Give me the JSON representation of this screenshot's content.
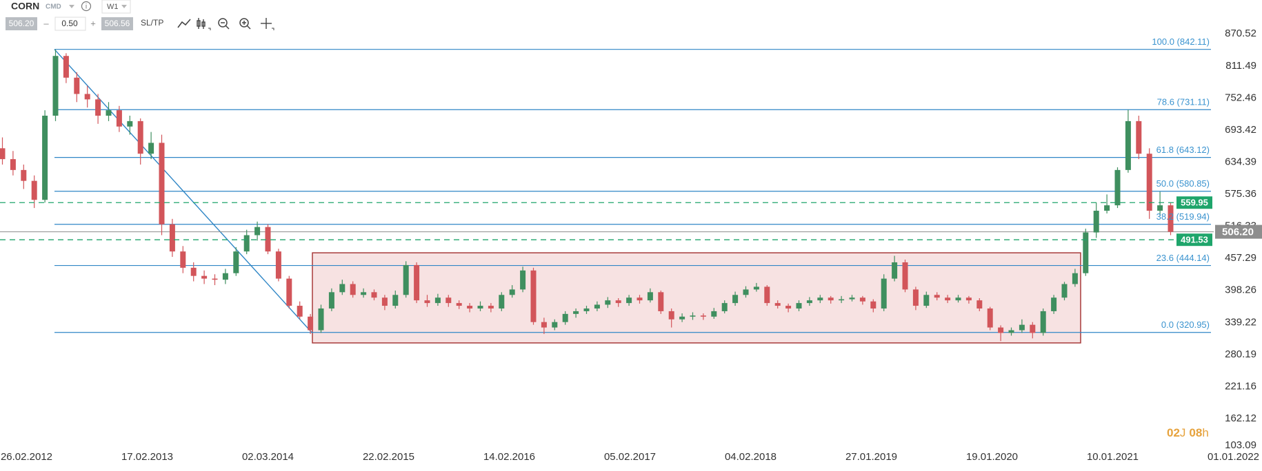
{
  "toolbar": {
    "symbol": "CORN",
    "market": "CMD",
    "timeframe": "W1",
    "bid": "506.20",
    "volume": "0.50",
    "ask": "506.56",
    "sltp": "SL/TP",
    "countdown_days": "02",
    "countdown_days_unit": "J",
    "countdown_hours": "08",
    "countdown_hours_unit": "h"
  },
  "chart_data": {
    "type": "candlestick",
    "x_labels": [
      "26.02.2012",
      "17.02.2013",
      "02.03.2014",
      "22.02.2015",
      "14.02.2016",
      "05.02.2017",
      "04.02.2018",
      "27.01.2019",
      "19.01.2020",
      "10.01.2021",
      "01.01.2022"
    ],
    "candles": [
      [
        660,
        680,
        630,
        640
      ],
      [
        640,
        655,
        610,
        620
      ],
      [
        620,
        630,
        585,
        600
      ],
      [
        600,
        610,
        550,
        565
      ],
      [
        565,
        730,
        560,
        720
      ],
      [
        720,
        842,
        710,
        830
      ],
      [
        830,
        835,
        780,
        790
      ],
      [
        790,
        800,
        745,
        760
      ],
      [
        760,
        775,
        735,
        750
      ],
      [
        750,
        760,
        705,
        720
      ],
      [
        720,
        745,
        710,
        730
      ],
      [
        730,
        738,
        690,
        700
      ],
      [
        700,
        720,
        685,
        710
      ],
      [
        710,
        715,
        630,
        650
      ],
      [
        650,
        690,
        640,
        670
      ],
      [
        670,
        685,
        500,
        520
      ],
      [
        520,
        530,
        460,
        470
      ],
      [
        470,
        480,
        430,
        440
      ],
      [
        440,
        450,
        415,
        425
      ],
      [
        425,
        435,
        410,
        420
      ],
      [
        420,
        428,
        408,
        418
      ],
      [
        418,
        438,
        410,
        430
      ],
      [
        430,
        478,
        425,
        470
      ],
      [
        470,
        510,
        465,
        500
      ],
      [
        500,
        525,
        490,
        515
      ],
      [
        515,
        520,
        465,
        470
      ],
      [
        470,
        475,
        415,
        420
      ],
      [
        420,
        425,
        365,
        370
      ],
      [
        370,
        378,
        345,
        350
      ],
      [
        350,
        355,
        318,
        325
      ],
      [
        325,
        372,
        320,
        365
      ],
      [
        365,
        402,
        360,
        395
      ],
      [
        395,
        418,
        390,
        410
      ],
      [
        410,
        415,
        385,
        390
      ],
      [
        390,
        402,
        385,
        395
      ],
      [
        395,
        400,
        380,
        385
      ],
      [
        385,
        390,
        362,
        370
      ],
      [
        370,
        398,
        365,
        390
      ],
      [
        390,
        452,
        385,
        445
      ],
      [
        445,
        450,
        375,
        380
      ],
      [
        380,
        390,
        368,
        375
      ],
      [
        375,
        392,
        370,
        385
      ],
      [
        385,
        390,
        368,
        375
      ],
      [
        375,
        380,
        364,
        370
      ],
      [
        370,
        375,
        358,
        365
      ],
      [
        365,
        378,
        360,
        370
      ],
      [
        370,
        375,
        358,
        365
      ],
      [
        365,
        395,
        360,
        390
      ],
      [
        390,
        408,
        385,
        400
      ],
      [
        400,
        442,
        395,
        435
      ],
      [
        435,
        440,
        335,
        340
      ],
      [
        340,
        348,
        318,
        330
      ],
      [
        330,
        345,
        325,
        340
      ],
      [
        340,
        360,
        335,
        355
      ],
      [
        355,
        365,
        348,
        360
      ],
      [
        360,
        370,
        355,
        365
      ],
      [
        365,
        378,
        360,
        372
      ],
      [
        372,
        386,
        366,
        380
      ],
      [
        380,
        384,
        368,
        375
      ],
      [
        375,
        390,
        370,
        385
      ],
      [
        385,
        390,
        374,
        380
      ],
      [
        380,
        402,
        376,
        395
      ],
      [
        395,
        398,
        355,
        360
      ],
      [
        360,
        365,
        330,
        345
      ],
      [
        345,
        356,
        340,
        350
      ],
      [
        350,
        358,
        344,
        352
      ],
      [
        352,
        356,
        344,
        350
      ],
      [
        350,
        366,
        346,
        360
      ],
      [
        360,
        380,
        356,
        375
      ],
      [
        375,
        396,
        370,
        390
      ],
      [
        390,
        406,
        385,
        400
      ],
      [
        400,
        412,
        396,
        405
      ],
      [
        405,
        408,
        370,
        375
      ],
      [
        375,
        380,
        365,
        370
      ],
      [
        370,
        374,
        358,
        365
      ],
      [
        365,
        380,
        360,
        375
      ],
      [
        375,
        386,
        370,
        380
      ],
      [
        380,
        390,
        375,
        385
      ],
      [
        385,
        388,
        374,
        380
      ],
      [
        380,
        388,
        375,
        382
      ],
      [
        382,
        390,
        378,
        385
      ],
      [
        385,
        388,
        372,
        378
      ],
      [
        378,
        382,
        358,
        365
      ],
      [
        365,
        428,
        360,
        420
      ],
      [
        420,
        462,
        415,
        450
      ],
      [
        450,
        455,
        395,
        400
      ],
      [
        400,
        405,
        362,
        370
      ],
      [
        370,
        396,
        366,
        390
      ],
      [
        390,
        395,
        380,
        385
      ],
      [
        385,
        390,
        375,
        380
      ],
      [
        380,
        390,
        376,
        385
      ],
      [
        385,
        388,
        374,
        380
      ],
      [
        380,
        384,
        360,
        365
      ],
      [
        365,
        368,
        325,
        330
      ],
      [
        330,
        334,
        305,
        320
      ],
      [
        320,
        330,
        315,
        325
      ],
      [
        325,
        345,
        320,
        335
      ],
      [
        335,
        340,
        310,
        320
      ],
      [
        320,
        365,
        315,
        360
      ],
      [
        360,
        390,
        355,
        385
      ],
      [
        385,
        414,
        380,
        410
      ],
      [
        410,
        438,
        405,
        430
      ],
      [
        430,
        512,
        425,
        505
      ],
      [
        505,
        560,
        495,
        545
      ],
      [
        545,
        575,
        540,
        555
      ],
      [
        555,
        625,
        550,
        620
      ],
      [
        620,
        731,
        615,
        710
      ],
      [
        710,
        720,
        640,
        650
      ],
      [
        650,
        660,
        530,
        545
      ],
      [
        545,
        580,
        535,
        555
      ],
      [
        555,
        560,
        500,
        506.2
      ]
    ],
    "up_color": "#3f8f5f",
    "down_color": "#d2555a",
    "ylim": [
      100,
      933
    ],
    "yticks": [
      870.52,
      811.49,
      752.46,
      693.42,
      634.39,
      575.36,
      516.33,
      457.29,
      398.26,
      339.22,
      280.19,
      221.16,
      162.12,
      103.09
    ],
    "fib_levels": [
      {
        "value": 842.11,
        "label": "100.0 (842.11)"
      },
      {
        "value": 731.11,
        "label": "78.6 (731.11)"
      },
      {
        "value": 643.12,
        "label": "61.8 (643.12)"
      },
      {
        "value": 580.85,
        "label": "50.0 (580.85)"
      },
      {
        "value": 519.94,
        "label": "38.2 (519.94)"
      },
      {
        "value": 444.14,
        "label": "23.6 (444.14)"
      },
      {
        "value": 320.95,
        "label": "0.0 (320.95)"
      }
    ],
    "fib_color": "#2f86c6",
    "zone": {
      "top": 467.5,
      "bottom": 301.6,
      "fill": "rgba(214,110,110,0.2)",
      "stroke": "#a83a3a"
    },
    "levels": [
      559.95,
      491.53
    ],
    "level_color": "#1fa56b",
    "current_price": {
      "value": 506.2,
      "label": "506.20"
    },
    "current_color": "#8d8d8d"
  }
}
